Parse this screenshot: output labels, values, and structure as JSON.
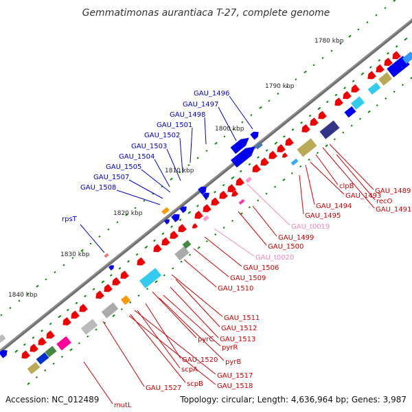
{
  "title": "Gemmatimonas aurantiaca T-27, complete genome",
  "footer": {
    "accession": "Accession: NC_012489",
    "topology": "Topology: circular; Length: 4,636,964 bp; Genes: 3,987"
  },
  "ticks": [
    {
      "label": "1780 kbp",
      "color": "#222222"
    },
    {
      "label": "1790 kbp",
      "color": "#222222"
    },
    {
      "label": "1800 kbp",
      "color": "#222222"
    },
    {
      "label": "1810 kbp",
      "color": "#222222"
    },
    {
      "label": "1820 kbp",
      "color": "#222222"
    },
    {
      "label": "1830 kbp",
      "color": "#222222"
    },
    {
      "label": "1840 kbp",
      "color": "#222222"
    }
  ],
  "labels_left": [
    {
      "text": "GAU_1496",
      "color": "#0000cc"
    },
    {
      "text": "GAU_1497",
      "color": "#0000cc"
    },
    {
      "text": "GAU_1498",
      "color": "#0000cc"
    },
    {
      "text": "GAU_1501",
      "color": "#0000cc"
    },
    {
      "text": "GAU_1502",
      "color": "#0000cc"
    },
    {
      "text": "GAU_1503",
      "color": "#0000cc"
    },
    {
      "text": "GAU_1504",
      "color": "#0000cc"
    },
    {
      "text": "GAU_1505",
      "color": "#0000cc"
    },
    {
      "text": "GAU_1507",
      "color": "#0000cc"
    },
    {
      "text": "GAU_1508",
      "color": "#0000cc"
    },
    {
      "text": "rpsT",
      "color": "#0000cc"
    }
  ],
  "labels_right": [
    {
      "text": "GAU_1489",
      "color": "#cc0000"
    },
    {
      "text": "recO",
      "color": "#cc0000"
    },
    {
      "text": "GAU_1491",
      "color": "#cc0000"
    },
    {
      "text": "clpB",
      "color": "#cc0000"
    },
    {
      "text": "GAU_1493",
      "color": "#cc0000"
    },
    {
      "text": "GAU_1494",
      "color": "#cc0000"
    },
    {
      "text": "GAU_1495",
      "color": "#cc0000"
    },
    {
      "text": "GAU_t0019",
      "color": "#ee88bb"
    },
    {
      "text": "GAU_1499",
      "color": "#cc0000"
    },
    {
      "text": "GAU_1500",
      "color": "#cc0000"
    },
    {
      "text": "GAU_t0020",
      "color": "#ee88bb"
    },
    {
      "text": "GAU_1506",
      "color": "#cc0000"
    },
    {
      "text": "GAU_1509",
      "color": "#cc0000"
    },
    {
      "text": "GAU_1510",
      "color": "#cc0000"
    },
    {
      "text": "GAU_1511",
      "color": "#cc0000"
    },
    {
      "text": "GAU_1512",
      "color": "#cc0000"
    },
    {
      "text": "pyrC",
      "color": "#cc0000"
    },
    {
      "text": "GAU_1513",
      "color": "#cc0000"
    },
    {
      "text": "pyrR",
      "color": "#cc0000"
    },
    {
      "text": "pyrB",
      "color": "#cc0000"
    },
    {
      "text": "GAU_1520",
      "color": "#cc0000"
    },
    {
      "text": "scpA",
      "color": "#cc0000"
    },
    {
      "text": "GAU_1517",
      "color": "#cc0000"
    },
    {
      "text": "GAU_1518",
      "color": "#cc0000"
    },
    {
      "text": "GAU_1527",
      "color": "#cc0000"
    },
    {
      "text": "scpB",
      "color": "#cc0000"
    },
    {
      "text": "mutL",
      "color": "#cc0000"
    }
  ],
  "colors": {
    "backbone": "#888888",
    "forward_gene": "#0000ee",
    "reverse_gene": "#ee0000",
    "trna": "#ff99cc",
    "gc_skew": "#008800",
    "leader_forward": "#0000cc",
    "leader_reverse": "#cc0000"
  }
}
